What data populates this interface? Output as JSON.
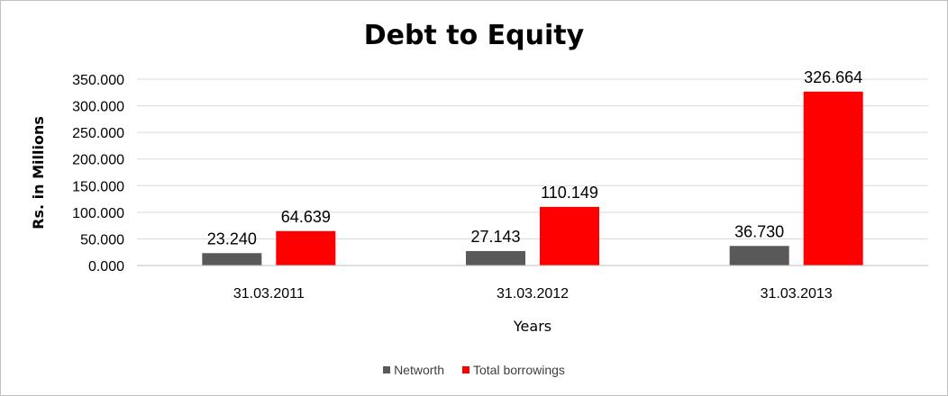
{
  "chart_data": {
    "type": "bar",
    "title": "Debt to Equity",
    "xlabel": "Years",
    "ylabel": "Rs. in Millions",
    "categories": [
      "31.03.2011",
      "31.03.2012",
      "31.03.2013"
    ],
    "series": [
      {
        "name": "Networth",
        "values": [
          23.24,
          27.143,
          36.73
        ],
        "labels": [
          "23.240",
          "27.143",
          "36.730"
        ],
        "color": "#595959"
      },
      {
        "name": "Total borrowings",
        "values": [
          64.639,
          110.149,
          326.664
        ],
        "labels": [
          "64.639",
          "110.149",
          "326.664"
        ],
        "color": "#ff0000"
      }
    ],
    "ylim": [
      0,
      350
    ],
    "yticks": [
      "0.000",
      "50.000",
      "100.000",
      "150.000",
      "200.000",
      "250.000",
      "300.000",
      "350.000"
    ],
    "grid": true,
    "legend": "bottom"
  }
}
